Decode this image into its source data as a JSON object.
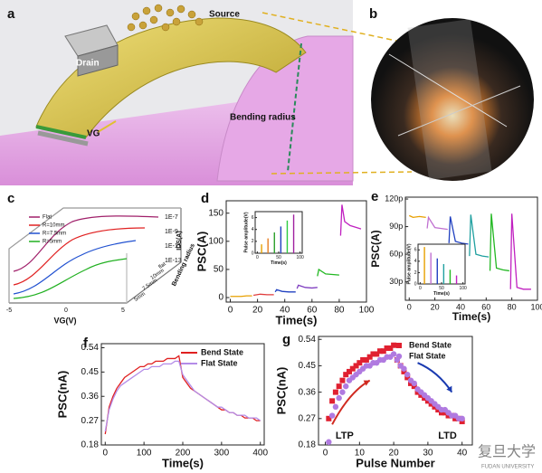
{
  "panel_labels": [
    "a",
    "b",
    "c",
    "d",
    "e",
    "f",
    "g"
  ],
  "panel_a": {
    "source": "Source",
    "drain": "Drain",
    "gate": "VG",
    "bending": "Bending radius"
  },
  "panel_c": {
    "legend": [
      {
        "name": "Flat",
        "color": "#a0206a"
      },
      {
        "name": "R=10mm",
        "color": "#e02020"
      },
      {
        "name": "R=7.5mm",
        "color": "#2050d0"
      },
      {
        "name": "R=5mm",
        "color": "#20b020"
      }
    ],
    "zticks": [
      "1E-7",
      "1E-9",
      "1E-11",
      "1E-13"
    ],
    "zlabel": "IDS(A)",
    "xticks": [
      "-5",
      "0",
      "5"
    ],
    "xlabel": "VG(V)",
    "depth_ticks": [
      "flat",
      "10mm",
      "7.5mm",
      "5mm"
    ],
    "depth_label": "Bending radius"
  },
  "watermark": {
    "name": "复旦大学",
    "sub": "FUDAN UNIVERSITY"
  },
  "chart_data": [
    {
      "type": "line",
      "x_label": "Time(s)",
      "y_label": "PSC(A)",
      "xlim": [
        -3,
        100
      ],
      "xticks": [
        0,
        20,
        40,
        60,
        80,
        100
      ],
      "ylim": [
        -8,
        172
      ],
      "yticks": [
        0,
        50,
        100,
        150
      ],
      "series": [
        {
          "color": "#e8a000",
          "x": [
            0,
            4,
            8,
            12,
            16
          ],
          "values": [
            2,
            2,
            2,
            3,
            3
          ]
        },
        {
          "color": "#e03c3c",
          "x": [
            17,
            22,
            27,
            32
          ],
          "values": [
            4,
            6,
            5,
            5
          ]
        },
        {
          "color": "#2040c0",
          "x": [
            33,
            34,
            38,
            43,
            48
          ],
          "values": [
            10,
            14,
            11,
            10,
            10
          ]
        },
        {
          "color": "#8040c0",
          "x": [
            49,
            50,
            55,
            60,
            64
          ],
          "values": [
            16,
            22,
            18,
            17,
            18
          ]
        },
        {
          "color": "#22b822",
          "x": [
            64,
            65,
            70,
            75,
            80
          ],
          "values": [
            38,
            50,
            42,
            41,
            40
          ]
        },
        {
          "color": "#c020c0",
          "x": [
            81,
            82,
            84,
            88,
            92,
            96
          ],
          "values": [
            110,
            165,
            135,
            128,
            125,
            122
          ]
        }
      ],
      "inset": {
        "type": "bar",
        "x_label": "Time(s)",
        "y_label": "Pulse amplitude(V)",
        "xlim": [
          -5,
          105
        ],
        "xticks": [
          0,
          50,
          100
        ],
        "ylim": [
          0,
          7
        ],
        "yticks": [
          0,
          2,
          4,
          6
        ],
        "x": [
          10,
          25,
          40,
          55,
          70,
          85
        ],
        "values": [
          1.5,
          2.5,
          3.5,
          4.5,
          5.5,
          6.5
        ],
        "colors": [
          "#e8a000",
          "#e67e22",
          "#2ca02c",
          "#1f3fbf",
          "#2ecc40",
          "#a020a0"
        ]
      }
    },
    {
      "type": "line",
      "x_label": "Time(s)",
      "y_label": "PSC(A)",
      "xlim": [
        -3,
        100
      ],
      "xticks": [
        0,
        20,
        40,
        60,
        80,
        100
      ],
      "ylim": [
        10,
        122
      ],
      "yticks": [
        {
          "value": 30,
          "label": "30p"
        },
        {
          "value": 60,
          "label": "60p"
        },
        {
          "value": 90,
          "label": "90p"
        },
        {
          "value": 120,
          "label": "120p"
        }
      ],
      "series": [
        {
          "color": "#e8a000",
          "x": [
            0,
            3,
            8,
            13
          ],
          "values": [
            102,
            100,
            101,
            100
          ]
        },
        {
          "color": "#c070d0",
          "x": [
            14,
            15,
            20,
            25,
            30
          ],
          "values": [
            88,
            100,
            89,
            88,
            87
          ]
        },
        {
          "color": "#2040c0",
          "x": [
            31,
            32,
            36,
            41,
            46
          ],
          "values": [
            72,
            101,
            74,
            72,
            71
          ]
        },
        {
          "color": "#20a0a0",
          "x": [
            47,
            48,
            52,
            57,
            62
          ],
          "values": [
            58,
            103,
            60,
            58,
            57
          ]
        },
        {
          "color": "#22b822",
          "x": [
            63,
            64,
            68,
            73,
            78
          ],
          "values": [
            42,
            104,
            45,
            43,
            42
          ]
        },
        {
          "color": "#c020c0",
          "x": [
            79,
            80,
            84,
            89,
            95
          ],
          "values": [
            22,
            104,
            24,
            22,
            22
          ]
        }
      ],
      "inset": {
        "type": "bar",
        "x_label": "Time(s)",
        "y_label": "Pulse amplitude(V)",
        "xlim": [
          -5,
          105
        ],
        "xticks": [
          0,
          50,
          100
        ],
        "ylim": [
          0,
          7
        ],
        "yticks": [
          0,
          2,
          4,
          6
        ],
        "x": [
          10,
          25,
          40,
          55,
          70,
          85
        ],
        "values": [
          6.5,
          5.5,
          4.5,
          3.5,
          2.5,
          1.5
        ],
        "colors": [
          "#e8a000",
          "#c070d0",
          "#2040c0",
          "#20a0a0",
          "#22b822",
          "#c020c0"
        ]
      }
    },
    {
      "type": "line",
      "x_label": "Time(s)",
      "y_label": "PSC(nA)",
      "xlim": [
        -10,
        410
      ],
      "xticks": [
        0,
        100,
        200,
        300,
        400
      ],
      "ylim": [
        0.18,
        0.555
      ],
      "yticks": [
        0.18,
        0.27,
        0.36,
        0.45,
        0.54
      ],
      "legend": "upper right",
      "x": [
        0,
        10,
        20,
        30,
        40,
        50,
        60,
        70,
        80,
        90,
        100,
        110,
        120,
        130,
        140,
        150,
        160,
        170,
        180,
        190,
        200,
        210,
        220,
        230,
        240,
        250,
        260,
        270,
        280,
        290,
        300,
        310,
        320,
        330,
        340,
        350,
        360,
        370,
        380,
        390,
        400
      ],
      "series": [
        {
          "name": "Bend State",
          "color": "#e02020",
          "values": [
            0.22,
            0.32,
            0.36,
            0.39,
            0.41,
            0.43,
            0.44,
            0.45,
            0.46,
            0.47,
            0.47,
            0.48,
            0.48,
            0.49,
            0.49,
            0.49,
            0.5,
            0.5,
            0.5,
            0.51,
            0.43,
            0.41,
            0.39,
            0.38,
            0.37,
            0.36,
            0.35,
            0.34,
            0.33,
            0.32,
            0.31,
            0.31,
            0.3,
            0.3,
            0.29,
            0.29,
            0.28,
            0.28,
            0.28,
            0.27,
            0.27
          ]
        },
        {
          "name": "Flat State",
          "color": "#b48ce8",
          "values": [
            0.23,
            0.31,
            0.35,
            0.38,
            0.4,
            0.41,
            0.42,
            0.43,
            0.44,
            0.45,
            0.46,
            0.46,
            0.47,
            0.47,
            0.47,
            0.48,
            0.48,
            0.48,
            0.49,
            0.49,
            0.44,
            0.42,
            0.4,
            0.38,
            0.37,
            0.36,
            0.35,
            0.34,
            0.33,
            0.32,
            0.32,
            0.31,
            0.3,
            0.3,
            0.29,
            0.29,
            0.29,
            0.28,
            0.28,
            0.28,
            0.27
          ]
        }
      ]
    },
    {
      "type": "scatter",
      "x_label": "Pulse Number",
      "y_label": "PSC(nA)",
      "xlim": [
        -2,
        43
      ],
      "xticks": [
        0,
        10,
        20,
        30,
        40
      ],
      "ylim": [
        0.18,
        0.55
      ],
      "yticks": [
        0.18,
        0.27,
        0.36,
        0.45,
        0.54
      ],
      "legend": "upper right",
      "annotations": [
        "LTP",
        "LTD"
      ],
      "x": [
        1,
        2,
        3,
        4,
        5,
        6,
        7,
        8,
        9,
        10,
        11,
        12,
        13,
        14,
        15,
        16,
        17,
        18,
        19,
        20,
        21,
        22,
        23,
        24,
        25,
        26,
        27,
        28,
        29,
        30,
        31,
        32,
        33,
        34,
        35,
        36,
        37,
        38,
        39,
        40
      ],
      "series": [
        {
          "name": "Bend State",
          "color": "#e02030",
          "marker": "square",
          "values": [
            0.27,
            0.33,
            0.36,
            0.38,
            0.4,
            0.42,
            0.43,
            0.44,
            0.45,
            0.46,
            0.47,
            0.47,
            0.48,
            0.49,
            0.49,
            0.5,
            0.5,
            0.51,
            0.51,
            0.52,
            0.47,
            0.45,
            0.43,
            0.41,
            0.39,
            0.38,
            0.36,
            0.35,
            0.34,
            0.33,
            0.32,
            0.31,
            0.3,
            0.29,
            0.29,
            0.28,
            0.28,
            0.27,
            0.27,
            0.26
          ]
        },
        {
          "name": "Flat State",
          "color": "#b07ae0",
          "marker": "circle",
          "values": [
            0.19,
            0.28,
            0.31,
            0.34,
            0.36,
            0.38,
            0.4,
            0.41,
            0.42,
            0.43,
            0.44,
            0.45,
            0.45,
            0.46,
            0.46,
            0.47,
            0.47,
            0.48,
            0.48,
            0.49,
            0.47,
            0.45,
            0.44,
            0.42,
            0.4,
            0.39,
            0.37,
            0.36,
            0.35,
            0.34,
            0.33,
            0.32,
            0.31,
            0.3,
            0.3,
            0.29,
            0.28,
            0.28,
            0.27,
            0.27
          ]
        }
      ]
    }
  ]
}
